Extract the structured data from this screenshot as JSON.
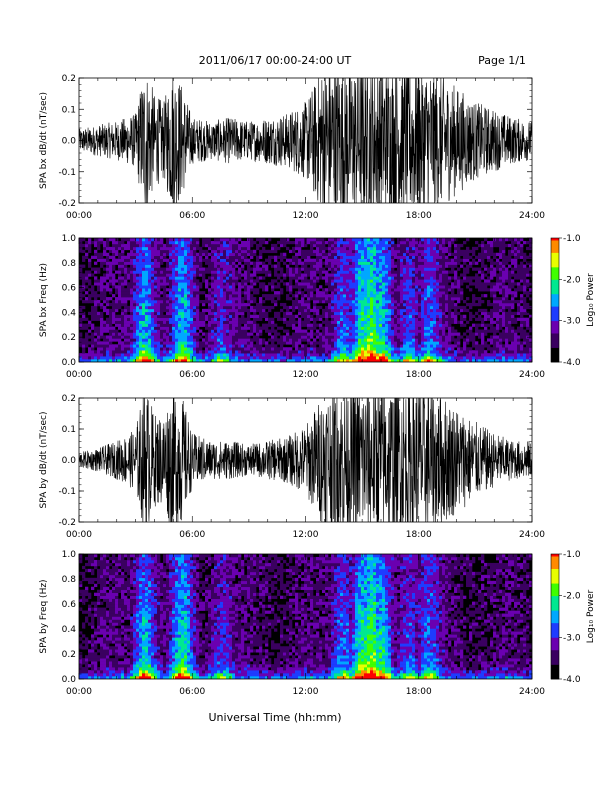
{
  "header": {
    "title": "2011/06/17  00:00-24:00 UT",
    "page": "Page 1/1"
  },
  "xlabel": "Universal Time (hh:mm)",
  "colors": {
    "trace": "#000000",
    "background": "#ffffff",
    "spectrogram_floor": "#000000",
    "colormap": [
      "#000000",
      "#3a0060",
      "#6a00b0",
      "#1e3cff",
      "#00a8ff",
      "#00e890",
      "#40ff00",
      "#e8ff00",
      "#ff8a00",
      "#ff0000"
    ]
  },
  "chart_data": [
    {
      "type": "line",
      "ylabel": "SPA bx dB/dt (nT/sec)",
      "ylim": [
        -0.2,
        0.2
      ],
      "yticks": [
        "-0.2",
        "-0.1",
        "0.0",
        "0.1",
        "0.2"
      ],
      "xlim": [
        0,
        24
      ],
      "xticks": [
        "00:00",
        "06:00",
        "12:00",
        "18:00",
        "24:00"
      ],
      "x_hours": [
        0,
        1,
        2,
        3,
        3.5,
        4,
        4.5,
        5,
        5.5,
        6,
        7,
        8,
        9,
        10,
        11,
        12,
        13,
        14,
        15,
        16,
        17,
        18,
        19,
        20,
        21,
        22,
        23,
        24
      ],
      "amplitude": [
        0.03,
        0.04,
        0.05,
        0.07,
        0.2,
        0.12,
        0.1,
        0.2,
        0.14,
        0.06,
        0.05,
        0.06,
        0.05,
        0.06,
        0.07,
        0.1,
        0.2,
        0.2,
        0.2,
        0.2,
        0.2,
        0.2,
        0.18,
        0.14,
        0.1,
        0.08,
        0.06,
        0.05
      ]
    },
    {
      "type": "heatmap",
      "ylabel": "SPA bx Freq (Hz)",
      "ylim": [
        0.0,
        1.0
      ],
      "yticks": [
        "0.0",
        "0.2",
        "0.4",
        "0.6",
        "0.8",
        "1.0"
      ],
      "xlim": [
        0,
        24
      ],
      "xticks": [
        "00:00",
        "06:00",
        "12:00",
        "18:00",
        "24:00"
      ],
      "colorbar": {
        "label": "Log₁₀ Power",
        "ticks": [
          "-1.0",
          "-2.0",
          "-3.0",
          "-4.0"
        ],
        "range": [
          -4.0,
          -1.0
        ]
      },
      "activity_hours": [
        3.5,
        5.5,
        7.5,
        14,
        15,
        15.5,
        16,
        17.5,
        18.5
      ],
      "activity_weights": [
        0.8,
        0.7,
        0.4,
        0.6,
        0.9,
        1.0,
        0.8,
        0.5,
        0.5
      ]
    },
    {
      "type": "line",
      "ylabel": "SPA by dB/dt (nT/sec)",
      "ylim": [
        -0.2,
        0.2
      ],
      "yticks": [
        "-0.2",
        "-0.1",
        "0.0",
        "0.1",
        "0.2"
      ],
      "xlim": [
        0,
        24
      ],
      "xticks": [
        "00:00",
        "06:00",
        "12:00",
        "18:00",
        "24:00"
      ],
      "x_hours": [
        0,
        1,
        2,
        3,
        3.5,
        4,
        4.5,
        5,
        5.5,
        6,
        7,
        8,
        9,
        10,
        11,
        12,
        13,
        14,
        15,
        16,
        17,
        18,
        19,
        20,
        21,
        22,
        23,
        24
      ],
      "amplitude": [
        0.02,
        0.03,
        0.05,
        0.08,
        0.2,
        0.12,
        0.12,
        0.2,
        0.16,
        0.07,
        0.05,
        0.05,
        0.04,
        0.05,
        0.06,
        0.09,
        0.18,
        0.2,
        0.2,
        0.2,
        0.2,
        0.2,
        0.18,
        0.14,
        0.1,
        0.07,
        0.05,
        0.05
      ]
    },
    {
      "type": "heatmap",
      "ylabel": "SPA by Freq (Hz)",
      "ylim": [
        0.0,
        1.0
      ],
      "yticks": [
        "0.0",
        "0.2",
        "0.4",
        "0.6",
        "0.8",
        "1.0"
      ],
      "xlim": [
        0,
        24
      ],
      "xticks": [
        "00:00",
        "06:00",
        "12:00",
        "18:00",
        "24:00"
      ],
      "colorbar": {
        "label": "Log₁₀ Power",
        "ticks": [
          "-1.0",
          "-2.0",
          "-3.0",
          "-4.0"
        ],
        "range": [
          -4.0,
          -1.0
        ]
      },
      "activity_hours": [
        3.5,
        5.5,
        7.5,
        14,
        15,
        15.5,
        16,
        17.5,
        18.5
      ],
      "activity_weights": [
        0.8,
        0.8,
        0.4,
        0.6,
        0.9,
        1.0,
        0.8,
        0.5,
        0.5
      ]
    }
  ]
}
